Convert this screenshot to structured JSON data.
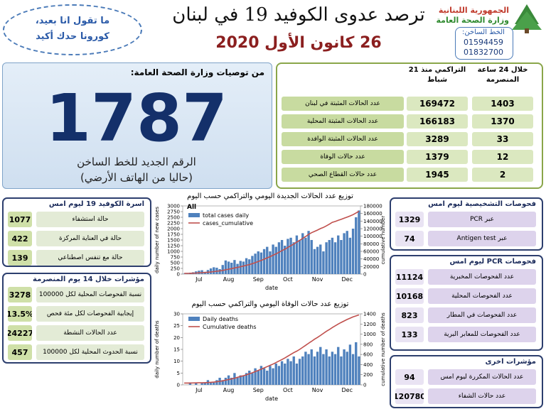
{
  "header": {
    "title": "ترصد عدوى الكوفيد 19 في لبنان",
    "date": "26 كانون الأول 2020",
    "republic": "الجمهورية اللبنانية",
    "ministry": "وزارة الصحة العامة",
    "hotline_label": "الخط الساخن:",
    "hotline_numbers": [
      "01594459",
      "01832700"
    ],
    "slogan": [
      "ما تقول انا بعيد،",
      "كورونا حدك أكيد"
    ]
  },
  "hotline_panel": {
    "title": "من توصيات وزارة الصحة العامة:",
    "number": "1787",
    "lines": [
      "الرقم الجديد للخط الساخن",
      "(حاليا من الهاتف الأرضي)"
    ]
  },
  "summary": {
    "headers": [
      "خلال 24 ساعة المنصرمة",
      "التراكمي منذ 21 شباط"
    ],
    "rows": [
      {
        "label": "عدد الحالات المثبتة في لبنان",
        "daily": 1403,
        "cumulative": 169472
      },
      {
        "label": "عدد الحالات المثبتة المحلية",
        "daily": 1370,
        "cumulative": 166183
      },
      {
        "label": "عدد الحالات المثبتة الوافدة",
        "daily": 33,
        "cumulative": 3289
      },
      {
        "label": "عدد حالات الوفاة",
        "daily": 12,
        "cumulative": 1379
      },
      {
        "label": "عدد حالات القطاع الصحي",
        "daily": 2,
        "cumulative": 1945
      }
    ]
  },
  "beds": {
    "title": "اسرة الكوفيد 19 ليوم امس",
    "rows": [
      {
        "label": "حالة استشفاء",
        "value": 1077
      },
      {
        "label": "حالة في العناية المركزة",
        "value": 422
      },
      {
        "label": "حالة مع تنفس اصطناعي",
        "value": 139
      }
    ]
  },
  "indicators_14d": {
    "title": "مؤشرات خلال 14 يوم المنصرمة",
    "rows": [
      {
        "label": "نسبة الفحوصات المحلية لكل 100000",
        "value": 3278
      },
      {
        "label": "إيجابية الفحوصات لكل مئة فحص",
        "value": "13.5%"
      },
      {
        "label": "عدد الحالات النشطة",
        "value": 24227
      },
      {
        "label": "نسبة الحدوث المحلية لكل 100000",
        "value": 457
      }
    ]
  },
  "diagnostic_tests": {
    "title": "فحوصات التشخيصية ليوم امس",
    "rows": [
      {
        "label": "عبر PCR",
        "value": 1329
      },
      {
        "label": "عبر Antigen test",
        "value": 74
      }
    ]
  },
  "pcr_tests": {
    "title": "فحوصات PCR ليوم امس",
    "rows": [
      {
        "label": "عدد الفحوصات المخبرية",
        "value": 11124
      },
      {
        "label": "عدد الفحوصات المحلية",
        "value": 10168
      },
      {
        "label": "عدد الفحوصات في المطار",
        "value": 823
      },
      {
        "label": "عدد الفحوصات للمعابر البرية",
        "value": 133
      }
    ]
  },
  "other_indicators": {
    "title": "مؤشرات اخرى",
    "rows": [
      {
        "label": "عدد الحالات المكررة ليوم امس",
        "value": 94
      },
      {
        "label": "عدد حالات الشفاء",
        "value": 120780
      }
    ]
  },
  "chart_data": [
    {
      "type": "bar_line",
      "title": "توزيع عدد الحالات الجديدة اليومي والتراكمي حسب اليوم",
      "annotation": "All",
      "y_label": "daily number of new cases",
      "y2_label": "cumulative number",
      "x_label": "date",
      "categories": [
        null,
        null,
        null,
        null,
        null,
        "Jul",
        null,
        null,
        null,
        null,
        null,
        null,
        null,
        null,
        null,
        "Aug",
        null,
        null,
        null,
        null,
        null,
        null,
        null,
        null,
        null,
        "Sep",
        null,
        null,
        null,
        null,
        null,
        null,
        null,
        null,
        null,
        "Oct",
        null,
        null,
        null,
        null,
        null,
        null,
        null,
        null,
        null,
        "Nov",
        null,
        null,
        null,
        null,
        null,
        null,
        null,
        null,
        null,
        "Dec",
        null,
        null,
        null,
        null
      ],
      "ylim": [
        0,
        3000
      ],
      "yticks": [
        0,
        250,
        500,
        750,
        1000,
        1250,
        1500,
        1750,
        2000,
        2250,
        2500,
        2750,
        3000
      ],
      "y2lim": [
        0,
        180000
      ],
      "y2ticks": [
        0,
        20000,
        40000,
        60000,
        80000,
        100000,
        120000,
        140000,
        160000,
        180000
      ],
      "series": [
        {
          "name": "total cases daily",
          "color": "#4f81bd",
          "mark": "bar",
          "values": [
            20,
            40,
            60,
            80,
            120,
            150,
            170,
            100,
            180,
            250,
            300,
            280,
            220,
            400,
            600,
            550,
            500,
            620,
            450,
            580,
            550,
            700,
            650,
            800,
            900,
            1000,
            950,
            1100,
            1200,
            1000,
            1300,
            1200,
            1400,
            1500,
            1250,
            1550,
            1600,
            1400,
            1700,
            1500,
            1800,
            1600,
            1900,
            1500,
            1100,
            1200,
            1300,
            1000,
            1400,
            1500,
            1600,
            1400,
            1700,
            1500,
            1800,
            1900,
            1600,
            2000,
            2500,
            2800
          ]
        },
        {
          "name": "cases_cumulative",
          "color": "#c0504d",
          "mark": "line",
          "axis": "y2",
          "values": [
            1800,
            1900,
            2100,
            2400,
            2800,
            3300,
            3800,
            4300,
            4900,
            5700,
            6600,
            7500,
            8400,
            9600,
            11400,
            13000,
            14500,
            16400,
            17700,
            19500,
            21100,
            23200,
            25100,
            27500,
            30200,
            33200,
            36000,
            39300,
            42900,
            45900,
            49800,
            53400,
            57600,
            62100,
            65800,
            70400,
            75200,
            79400,
            84500,
            89000,
            94400,
            99200,
            104900,
            109400,
            112700,
            116300,
            120200,
            123200,
            127400,
            131900,
            136700,
            139000,
            142000,
            144500,
            147500,
            150500,
            153500,
            157000,
            161500,
            166000
          ]
        }
      ]
    },
    {
      "type": "bar_line",
      "title": "توزيع عدد حالات الوفاة اليومي والتراكمي حسب اليوم",
      "y_label": "daily number of deaths",
      "y2_label": "cumulative number of deaths",
      "x_label": "date",
      "categories": [
        null,
        null,
        null,
        null,
        null,
        "Jul",
        null,
        null,
        null,
        null,
        null,
        null,
        null,
        null,
        null,
        "Aug",
        null,
        null,
        null,
        null,
        null,
        null,
        null,
        null,
        null,
        "Sep",
        null,
        null,
        null,
        null,
        null,
        null,
        null,
        null,
        null,
        "Oct",
        null,
        null,
        null,
        null,
        null,
        null,
        null,
        null,
        null,
        "Nov",
        null,
        null,
        null,
        null,
        null,
        null,
        null,
        null,
        null,
        "Dec",
        null,
        null,
        null,
        null
      ],
      "ylim": [
        0,
        30
      ],
      "yticks": [
        0,
        5,
        10,
        15,
        20,
        25,
        30
      ],
      "y2lim": [
        0,
        1400
      ],
      "y2ticks": [
        0,
        200,
        400,
        600,
        800,
        1000,
        1200,
        1400
      ],
      "series": [
        {
          "name": "Daily deaths",
          "color": "#4f81bd",
          "mark": "bar",
          "values": [
            0,
            0,
            1,
            0,
            1,
            0,
            1,
            1,
            2,
            1,
            1,
            2,
            3,
            2,
            3,
            4,
            3,
            5,
            3,
            4,
            4,
            5,
            6,
            5,
            7,
            6,
            8,
            7,
            6,
            8,
            7,
            9,
            8,
            10,
            9,
            11,
            10,
            12,
            9,
            11,
            12,
            14,
            13,
            15,
            12,
            14,
            16,
            13,
            15,
            12,
            14,
            13,
            16,
            12,
            15,
            14,
            17,
            13,
            18,
            12
          ]
        },
        {
          "name": "Cumulative deaths",
          "color": "#c0504d",
          "mark": "line",
          "axis": "y2",
          "values": [
            36,
            36,
            37,
            38,
            39,
            40,
            41,
            43,
            46,
            50,
            55,
            62,
            70,
            80,
            92,
            105,
            118,
            132,
            148,
            165,
            180,
            198,
            218,
            238,
            262,
            285,
            310,
            335,
            360,
            385,
            410,
            440,
            470,
            500,
            530,
            565,
            600,
            635,
            665,
            700,
            740,
            780,
            820,
            860,
            900,
            935,
            975,
            1015,
            1055,
            1090,
            1130,
            1165,
            1200,
            1230,
            1260,
            1290,
            1315,
            1340,
            1360,
            1379
          ]
        }
      ]
    }
  ]
}
